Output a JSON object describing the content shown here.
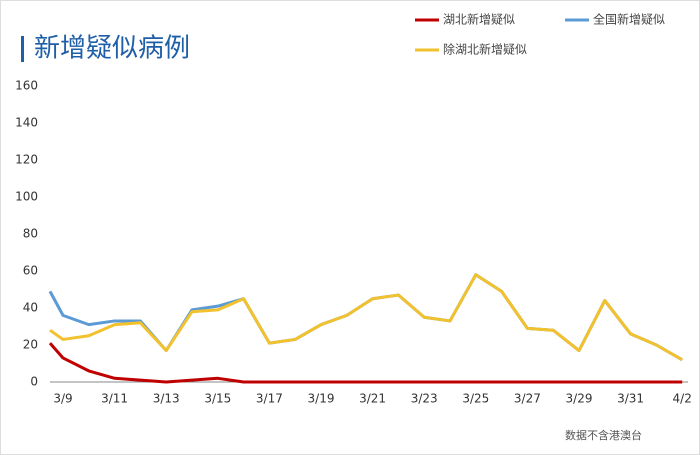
{
  "chart_data": {
    "type": "line",
    "title": "新增疑似病例",
    "note": "数据不含港澳台",
    "categories": [
      null,
      "3/9",
      null,
      "3/11",
      null,
      "3/13",
      null,
      "3/15",
      null,
      "3/17",
      null,
      "3/19",
      null,
      "3/21",
      null,
      "3/23",
      null,
      "3/25",
      null,
      "3/27",
      null,
      "3/29",
      null,
      "3/31",
      null,
      "4/2"
    ],
    "series": [
      {
        "name": "全国新增疑似",
        "color": "#5b9bd5",
        "values": [
          49,
          36,
          31,
          33,
          33,
          17,
          39,
          41,
          45,
          21,
          23,
          31,
          36,
          45,
          47,
          35,
          33,
          58,
          49,
          29,
          28,
          17,
          44,
          26,
          20,
          12
        ]
      },
      {
        "name": "湖北新增疑似",
        "color": "#c00000",
        "values": [
          21,
          13,
          6,
          2,
          1,
          0,
          1,
          2,
          0,
          0,
          0,
          0,
          0,
          0,
          0,
          0,
          0,
          0,
          0,
          0,
          0,
          0,
          0,
          0,
          0,
          0
        ]
      },
      {
        "name": "除湖北新增疑似",
        "color": "#f2c12e",
        "values": [
          28,
          23,
          25,
          31,
          32,
          17,
          38,
          39,
          45,
          21,
          23,
          31,
          36,
          45,
          47,
          35,
          33,
          58,
          49,
          29,
          28,
          17,
          44,
          26,
          20,
          12
        ]
      }
    ],
    "ylim": [
      0,
      160
    ],
    "yticks": [
      0,
      20,
      40,
      60,
      80,
      100,
      120,
      140,
      160
    ]
  }
}
